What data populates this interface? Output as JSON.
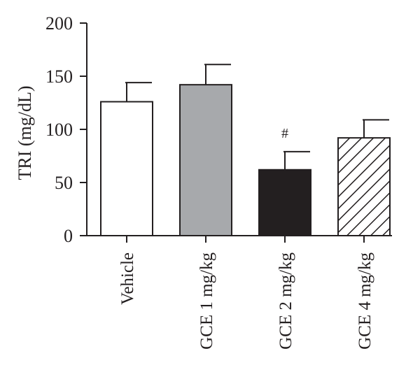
{
  "chart_data": {
    "type": "bar",
    "title": "",
    "xlabel": "",
    "ylabel": "TRI (mg/dL)",
    "ylim": [
      0,
      200
    ],
    "yticks": [
      0,
      50,
      100,
      150,
      200
    ],
    "grid": false,
    "categories": [
      "Vehicle",
      "GCE 1 mg/kg",
      "GCE 2 mg/kg",
      "GCE 4 mg/kg"
    ],
    "values": [
      126,
      142,
      62,
      92
    ],
    "errors": [
      18,
      19,
      17,
      17
    ],
    "fills": [
      "white",
      "gray",
      "black",
      "hatched"
    ],
    "colors": {
      "white": "#ffffff",
      "gray": "#a7a9ac",
      "black": "#231f20",
      "stroke": "#231f20"
    },
    "annotations": [
      {
        "category": "GCE 2 mg/kg",
        "text": "#"
      }
    ]
  }
}
